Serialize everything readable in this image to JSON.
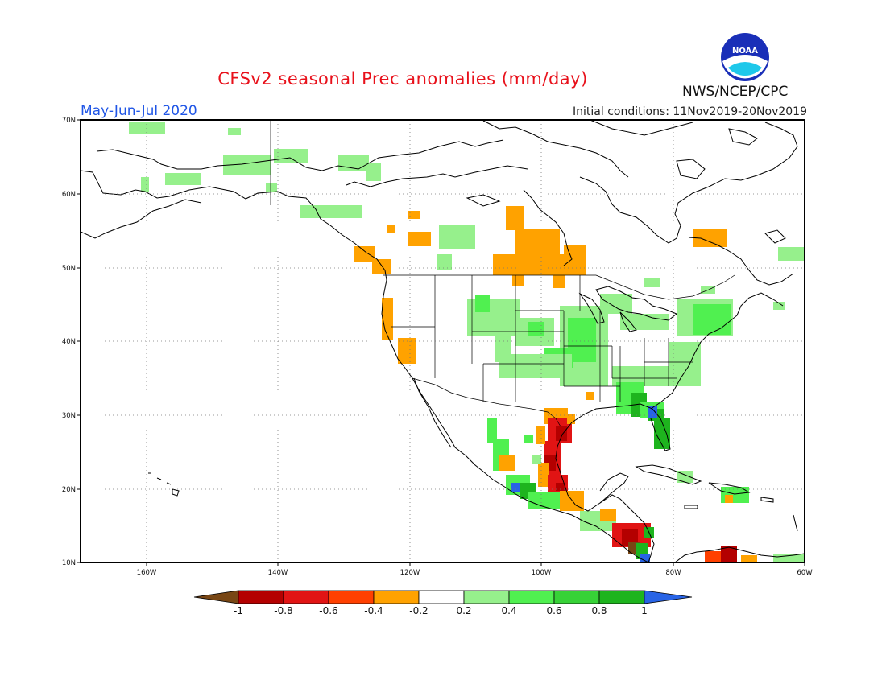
{
  "header": {
    "title": "CFSv2 seasonal Prec anomalies (mm/day)",
    "season": "May-Jun-Jul 2020",
    "initial_conditions": "Initial conditions: 11Nov2019-20Nov2019",
    "agency": "NWS/NCEP/CPC",
    "logo_text": "NOAA"
  },
  "map": {
    "lat_ticks": [
      "70N",
      "60N",
      "50N",
      "40N",
      "30N",
      "20N",
      "10N"
    ],
    "lon_ticks": [
      "160W",
      "140W",
      "120W",
      "100W",
      "80W",
      "60W"
    ],
    "lon_range": [
      -170,
      -60
    ],
    "lat_range": [
      10,
      70
    ],
    "projection": "cylindrical equidistant",
    "grid": "dotted",
    "anomaly_regions": [
      {
        "region": "Alaska north slope / Yukon",
        "value": "0.2 to 0.4",
        "color": "#96f08c"
      },
      {
        "region": "Pacific Northwest coast",
        "value": "-0.4 to -0.2",
        "color": "#ffa200"
      },
      {
        "region": "Northern California coast",
        "value": "-0.4 to -0.2",
        "color": "#ffa200"
      },
      {
        "region": "Central Canadian prairies",
        "value": "-0.4 to -0.2",
        "color": "#ffa200"
      },
      {
        "region": "Hudson Bay / Quebec",
        "value": "-0.4 to -0.2",
        "color": "#ffa200"
      },
      {
        "region": "Central US / Great Plains",
        "value": "0.2 to 0.6",
        "color": "#50f050"
      },
      {
        "region": "Northeast US",
        "value": "0.2 to 0.4",
        "color": "#50f050"
      },
      {
        "region": "Florida",
        "value": "0.6 to 1",
        "color": "#1eb41e"
      },
      {
        "region": "Texas / NE Mexico Gulf coast",
        "value": "-1 to -0.4",
        "color": "#c80000"
      },
      {
        "region": "Southern Mexico / Central America",
        "value": "-0.8 to 0.8",
        "color": "#1eb41e"
      },
      {
        "region": "Northern South America",
        "value": "-0.6 to -0.4",
        "color": "#ff4000"
      }
    ]
  },
  "colorbar": {
    "labels": [
      "-1",
      "-0.8",
      "-0.6",
      "-0.4",
      "-0.2",
      "0.2",
      "0.4",
      "0.6",
      "0.8",
      "1"
    ],
    "colors": [
      "#784614",
      "#b40000",
      "#e11414",
      "#ff4000",
      "#ffa200",
      "#ffffff",
      "#96f08c",
      "#50f050",
      "#37d237",
      "#1eb41e",
      "#0fa00f",
      "#2864e6"
    ]
  }
}
